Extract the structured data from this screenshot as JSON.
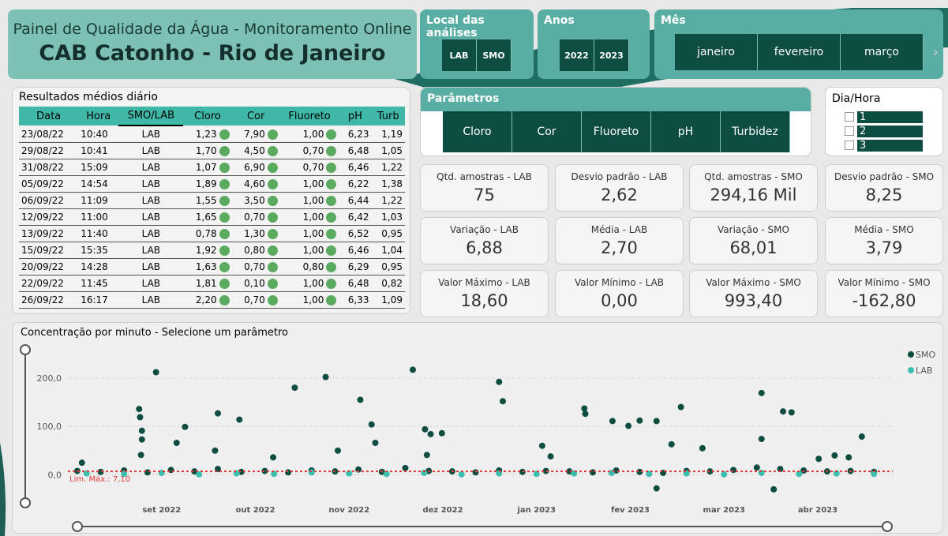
{
  "header": {
    "subtitle": "Painel de Qualidade da Água - Monitoramento Online",
    "title": "CAB Catonho - Rio de Janeiro"
  },
  "slicers": {
    "local": {
      "title": "Local das análises",
      "options": [
        "LAB",
        "SMO"
      ]
    },
    "anos": {
      "title": "Anos",
      "options": [
        "2022",
        "2023"
      ]
    },
    "mes": {
      "title": "Mês",
      "options": [
        "janeiro",
        "fevereiro",
        "março"
      ]
    },
    "parametros": {
      "title": "Parâmetros",
      "options": [
        "Cloro",
        "Cor",
        "Fluoreto",
        "pH",
        "Turbidez"
      ]
    },
    "dia_hora": {
      "title": "Dia/Hora",
      "options": [
        "1",
        "2",
        "3"
      ]
    }
  },
  "table": {
    "title": "Resultados médios diário",
    "columns": [
      "Data",
      "Hora",
      "SMO/LAB",
      "Cloro",
      "Cor",
      "Fluoreto",
      "pH",
      "Turb"
    ],
    "rows": [
      [
        "23/08/22",
        "10:40",
        "LAB",
        "1,23",
        "7,90",
        "1,00",
        "6,23",
        "1,19"
      ],
      [
        "29/08/22",
        "10:41",
        "LAB",
        "1,70",
        "4,50",
        "0,70",
        "6,48",
        "1,05"
      ],
      [
        "31/08/22",
        "15:09",
        "LAB",
        "1,07",
        "6,90",
        "0,70",
        "6,46",
        "1,22"
      ],
      [
        "05/09/22",
        "14:54",
        "LAB",
        "1,89",
        "4,60",
        "1,00",
        "6,22",
        "1,38"
      ],
      [
        "06/09/22",
        "11:09",
        "LAB",
        "1,55",
        "3,50",
        "1,00",
        "6,44",
        "1,22"
      ],
      [
        "12/09/22",
        "11:00",
        "LAB",
        "1,65",
        "0,70",
        "1,00",
        "6,42",
        "1,03"
      ],
      [
        "13/09/22",
        "11:40",
        "LAB",
        "0,78",
        "1,30",
        "1,00",
        "6,52",
        "0,95"
      ],
      [
        "15/09/22",
        "15:35",
        "LAB",
        "1,92",
        "0,80",
        "1,00",
        "6,46",
        "1,04"
      ],
      [
        "20/09/22",
        "14:28",
        "LAB",
        "1,63",
        "0,70",
        "0,80",
        "6,29",
        "0,95"
      ],
      [
        "22/09/22",
        "11:45",
        "LAB",
        "1,81",
        "0,10",
        "1,00",
        "6,48",
        "0,82"
      ],
      [
        "26/09/22",
        "16:17",
        "LAB",
        "2,20",
        "0,70",
        "1,00",
        "6,33",
        "1,09"
      ]
    ]
  },
  "kpis": [
    {
      "label": "Qtd. amostras - LAB",
      "value": "75"
    },
    {
      "label": "Desvio padrão - LAB",
      "value": "2,62"
    },
    {
      "label": "Qtd. amostras - SMO",
      "value": "294,16 Mil"
    },
    {
      "label": "Desvio padrão - SMO",
      "value": "8,25"
    },
    {
      "label": "Variação - LAB",
      "value": "6,88"
    },
    {
      "label": "Média - LAB",
      "value": "2,70"
    },
    {
      "label": "Variação - SMO",
      "value": "68,01"
    },
    {
      "label": "Média - SMO",
      "value": "3,79"
    },
    {
      "label": "Valor Máximo - LAB",
      "value": "18,60"
    },
    {
      "label": "Valor Mínimo - LAB",
      "value": "0,00"
    },
    {
      "label": "Valor Máximo - SMO",
      "value": "993,40"
    },
    {
      "label": "Valor Mínimo - SMO",
      "value": "-162,80"
    }
  ],
  "chart": {
    "type": "scatter",
    "title": "Concentração por minuto - Selecione um parâmetro",
    "series": [
      {
        "name": "SMO",
        "color": "#0d4d42",
        "x": [
          -0.06,
          -0.24,
          -0.23,
          -0.21,
          -0.21,
          -0.22,
          0.25,
          0.16,
          0.6,
          0.83,
          0.57,
          1.42,
          1.19,
          1.75,
          2.12,
          2.24,
          2.28,
          1.88,
          2.68,
          2.81,
          2.87,
          2.99,
          2.83,
          3.6,
          3.64,
          4.06,
          4.15,
          4.51,
          4.52,
          4.81,
          4.98,
          5.1,
          5.28,
          5.54,
          5.44,
          5.77,
          5.28,
          6.4,
          6.4,
          6.63,
          6.72,
          6.53,
          7.47,
          7.18,
          7.33,
          7.01,
          -0.85,
          -0.9,
          -0.65,
          -0.4,
          -0.15,
          0.1,
          0.35,
          0.6,
          0.85,
          1.1,
          1.35,
          1.6,
          1.85,
          2.1,
          2.35,
          2.6,
          2.85,
          3.1,
          3.35,
          3.6,
          3.85,
          4.1,
          4.35,
          4.6,
          4.85,
          5.1,
          5.35,
          5.6,
          5.85,
          6.1,
          6.35,
          6.6,
          6.85,
          7.1,
          7.35,
          7.6
        ],
        "values": [
          212,
          136,
          119,
          91,
          73,
          41,
          99,
          66,
          127,
          114,
          50,
          180,
          36,
          202,
          155,
          104,
          66,
          50,
          217,
          94,
          84,
          86,
          41,
          192,
          152,
          60,
          38,
          137,
          126,
          111,
          101,
          112,
          111,
          140,
          63,
          55,
          -28,
          169,
          74,
          131,
          129,
          -30,
          79,
          40,
          36,
          33,
          25,
          8,
          6,
          9,
          5,
          10,
          7,
          12,
          6,
          8,
          5,
          9,
          7,
          11,
          6,
          14,
          8,
          7,
          5,
          9,
          6,
          8,
          7,
          5,
          9,
          6,
          4,
          8,
          7,
          10,
          15,
          12,
          9,
          7,
          8,
          6
        ]
      },
      {
        "name": "LAB",
        "color": "#3bbfb0",
        "x": [
          -0.8,
          -0.4,
          0,
          0.4,
          0.8,
          1.2,
          1.6,
          2,
          2.4,
          2.8,
          3.2,
          3.6,
          4,
          4.4,
          4.8,
          5.2,
          5.6,
          6,
          6.4,
          6.8,
          7.2,
          7.6
        ],
        "values": [
          3,
          2,
          4,
          1,
          3,
          2,
          5,
          3,
          2,
          4,
          1,
          3,
          2,
          3,
          4,
          2,
          3,
          1,
          4,
          2,
          3,
          2
        ]
      }
    ],
    "xlim": [
      -1,
      7.8
    ],
    "xticks": [
      {
        "value": 0,
        "label": "set 2022"
      },
      {
        "value": 1,
        "label": "out 2022"
      },
      {
        "value": 2,
        "label": "nov 2022"
      },
      {
        "value": 3,
        "label": "dez 2022"
      },
      {
        "value": 4,
        "label": "jan 2023"
      },
      {
        "value": 5,
        "label": "fev 2023"
      },
      {
        "value": 6,
        "label": "mar 2023"
      },
      {
        "value": 7,
        "label": "abr 2023"
      }
    ],
    "ylim": [
      -40,
      265
    ],
    "yticks": [
      {
        "value": 0,
        "label": "0,0"
      },
      {
        "value": 100,
        "label": "100,0"
      },
      {
        "value": 200,
        "label": "200,0"
      }
    ],
    "grid": true,
    "reference_line": {
      "value": 7.1,
      "label": "Lim. Máx.: 7,10",
      "color": "#e53935"
    }
  }
}
